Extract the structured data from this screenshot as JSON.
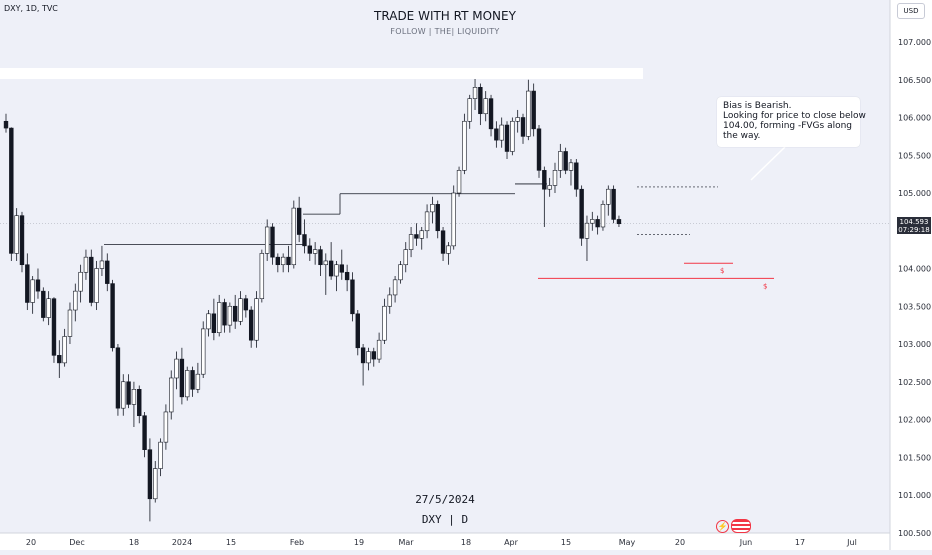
{
  "header": {
    "symbol_line": "DXY, 1D, TVC",
    "title": "TRADE WITH RT MONEY",
    "subtitle": "FOLLOW  |  THE|  LIQUIDITY",
    "currency": "USD"
  },
  "annotation": {
    "lines": [
      "Bias is Bearish.",
      "Looking for price to close below",
      "104.00, forming -FVGs along",
      "the way."
    ]
  },
  "watermark": {
    "date": "27/5/2024",
    "symbol": "DXY | D"
  },
  "price_badge": {
    "price": "104.593",
    "countdown": "07:29:18"
  },
  "liquidity_marks": [
    "$",
    "$"
  ],
  "colors": {
    "up": "#ffffff",
    "down": "#131722",
    "outline": "#131722",
    "liquidity": "#f23645",
    "level": "#131722",
    "background": "#eef0f8"
  },
  "chart_data": {
    "type": "candlestick",
    "y_ticks": [
      "107.000",
      "106.500",
      "106.000",
      "105.500",
      "105.000",
      "104.500",
      "104.000",
      "103.500",
      "103.000",
      "102.500",
      "102.000",
      "101.500",
      "101.000",
      "100.500"
    ],
    "x_ticks": [
      "20",
      "Dec",
      "18",
      "2024",
      "15",
      "Feb",
      "19",
      "Mar",
      "18",
      "Apr",
      "15",
      "May",
      "20",
      "Jun",
      "17",
      "Jul"
    ],
    "ylim": [
      100.4,
      107.3
    ],
    "last_price": 104.593,
    "ohlc": [
      [
        105.95,
        106.05,
        105.8,
        105.86
      ],
      [
        105.86,
        105.87,
        104.1,
        104.2
      ],
      [
        104.2,
        104.8,
        104.1,
        104.7
      ],
      [
        104.7,
        104.75,
        103.95,
        104.05
      ],
      [
        104.05,
        104.2,
        103.45,
        103.55
      ],
      [
        103.55,
        103.9,
        103.4,
        103.85
      ],
      [
        103.85,
        104.0,
        103.6,
        103.7
      ],
      [
        103.7,
        103.75,
        103.3,
        103.35
      ],
      [
        103.35,
        103.7,
        103.25,
        103.6
      ],
      [
        103.6,
        103.62,
        102.75,
        102.85
      ],
      [
        102.85,
        103.05,
        102.55,
        102.75
      ],
      [
        102.75,
        103.2,
        102.7,
        103.1
      ],
      [
        103.1,
        103.55,
        103.0,
        103.45
      ],
      [
        103.45,
        103.8,
        103.3,
        103.7
      ],
      [
        103.7,
        104.05,
        103.55,
        103.95
      ],
      [
        103.95,
        104.25,
        103.85,
        104.15
      ],
      [
        104.15,
        104.25,
        103.5,
        103.55
      ],
      [
        103.55,
        104.1,
        103.45,
        104.0
      ],
      [
        104.0,
        104.3,
        103.9,
        104.1
      ],
      [
        104.1,
        104.2,
        103.7,
        103.8
      ],
      [
        103.8,
        103.85,
        102.9,
        102.95
      ],
      [
        102.95,
        103.0,
        102.05,
        102.15
      ],
      [
        102.15,
        102.6,
        102.05,
        102.5
      ],
      [
        102.5,
        102.6,
        102.15,
        102.2
      ],
      [
        102.2,
        102.5,
        101.9,
        102.4
      ],
      [
        102.4,
        102.45,
        101.95,
        102.05
      ],
      [
        102.05,
        102.1,
        101.5,
        101.6
      ],
      [
        101.6,
        101.75,
        100.65,
        100.95
      ],
      [
        100.95,
        101.45,
        100.9,
        101.35
      ],
      [
        101.35,
        101.75,
        101.25,
        101.7
      ],
      [
        101.7,
        102.2,
        101.6,
        102.1
      ],
      [
        102.1,
        102.65,
        102.0,
        102.55
      ],
      [
        102.55,
        102.9,
        102.4,
        102.8
      ],
      [
        102.8,
        102.95,
        102.2,
        102.3
      ],
      [
        102.3,
        102.7,
        102.25,
        102.65
      ],
      [
        102.65,
        102.7,
        102.3,
        102.4
      ],
      [
        102.4,
        102.75,
        102.35,
        102.6
      ],
      [
        102.6,
        103.3,
        102.55,
        103.2
      ],
      [
        103.2,
        103.45,
        103.1,
        103.4
      ],
      [
        103.4,
        103.6,
        103.05,
        103.15
      ],
      [
        103.15,
        103.65,
        103.1,
        103.55
      ],
      [
        103.55,
        103.6,
        103.15,
        103.25
      ],
      [
        103.25,
        103.55,
        103.15,
        103.5
      ],
      [
        103.5,
        103.65,
        103.2,
        103.3
      ],
      [
        103.3,
        103.7,
        103.25,
        103.6
      ],
      [
        103.6,
        103.65,
        103.35,
        103.45
      ],
      [
        103.45,
        103.5,
        102.95,
        103.05
      ],
      [
        103.05,
        103.7,
        102.95,
        103.6
      ],
      [
        103.6,
        104.25,
        103.55,
        104.2
      ],
      [
        104.2,
        104.65,
        104.1,
        104.55
      ],
      [
        104.55,
        104.6,
        104.05,
        104.15
      ],
      [
        104.15,
        104.2,
        103.95,
        104.05
      ],
      [
        104.05,
        104.2,
        103.95,
        104.15
      ],
      [
        104.15,
        104.3,
        103.95,
        104.05
      ],
      [
        104.05,
        104.9,
        104.0,
        104.8
      ],
      [
        104.8,
        104.95,
        104.35,
        104.45
      ],
      [
        104.45,
        104.65,
        104.2,
        104.3
      ],
      [
        104.3,
        104.4,
        104.1,
        104.2
      ],
      [
        104.2,
        104.35,
        104.05,
        104.25
      ],
      [
        104.25,
        104.3,
        103.9,
        104.05
      ],
      [
        104.05,
        104.2,
        103.65,
        104.1
      ],
      [
        104.1,
        104.35,
        103.85,
        103.9
      ],
      [
        103.9,
        104.1,
        103.7,
        104.05
      ],
      [
        104.05,
        104.25,
        103.85,
        103.95
      ],
      [
        103.95,
        104.05,
        103.7,
        103.85
      ],
      [
        103.85,
        103.95,
        103.3,
        103.4
      ],
      [
        103.4,
        103.45,
        102.85,
        102.95
      ],
      [
        102.95,
        103.0,
        102.45,
        102.75
      ],
      [
        102.75,
        102.95,
        102.65,
        102.9
      ],
      [
        102.9,
        102.95,
        102.7,
        102.8
      ],
      [
        102.8,
        103.15,
        102.75,
        103.05
      ],
      [
        103.05,
        103.6,
        103.0,
        103.5
      ],
      [
        103.5,
        103.75,
        103.4,
        103.65
      ],
      [
        103.65,
        103.9,
        103.55,
        103.85
      ],
      [
        103.85,
        104.1,
        103.8,
        104.05
      ],
      [
        104.05,
        104.35,
        103.95,
        104.25
      ],
      [
        104.25,
        104.55,
        104.15,
        104.45
      ],
      [
        104.45,
        104.6,
        104.3,
        104.4
      ],
      [
        104.4,
        104.55,
        104.25,
        104.5
      ],
      [
        104.5,
        104.85,
        104.4,
        104.75
      ],
      [
        104.75,
        104.95,
        104.6,
        104.85
      ],
      [
        104.85,
        104.9,
        104.4,
        104.5
      ],
      [
        104.5,
        104.55,
        104.1,
        104.2
      ],
      [
        104.2,
        104.35,
        104.05,
        104.3
      ],
      [
        104.3,
        105.1,
        104.25,
        105.0
      ],
      [
        105.0,
        105.35,
        104.95,
        105.3
      ],
      [
        105.3,
        106.05,
        105.25,
        105.95
      ],
      [
        105.95,
        106.3,
        105.85,
        106.25
      ],
      [
        106.25,
        106.55,
        106.1,
        106.4
      ],
      [
        106.4,
        106.45,
        105.9,
        106.05
      ],
      [
        106.05,
        106.35,
        105.95,
        106.25
      ],
      [
        106.25,
        106.3,
        105.75,
        105.85
      ],
      [
        105.85,
        105.95,
        105.6,
        105.7
      ],
      [
        105.7,
        106.0,
        105.6,
        105.9
      ],
      [
        105.9,
        105.95,
        105.45,
        105.55
      ],
      [
        105.55,
        106.0,
        105.5,
        105.95
      ],
      [
        105.95,
        106.1,
        105.8,
        106.0
      ],
      [
        106.0,
        106.05,
        105.65,
        105.75
      ],
      [
        105.75,
        106.5,
        105.7,
        106.35
      ],
      [
        106.35,
        106.45,
        105.75,
        105.85
      ],
      [
        105.85,
        105.9,
        105.2,
        105.3
      ],
      [
        105.3,
        105.35,
        104.55,
        105.05
      ],
      [
        105.05,
        105.2,
        104.95,
        105.1
      ],
      [
        105.1,
        105.4,
        105.0,
        105.3
      ],
      [
        105.3,
        105.65,
        105.2,
        105.55
      ],
      [
        105.55,
        105.6,
        105.25,
        105.3
      ],
      [
        105.3,
        105.45,
        105.1,
        105.4
      ],
      [
        105.4,
        105.45,
        104.95,
        105.05
      ],
      [
        105.05,
        105.1,
        104.3,
        104.4
      ],
      [
        104.4,
        104.7,
        104.1,
        104.6
      ],
      [
        104.6,
        104.75,
        104.5,
        104.65
      ],
      [
        104.65,
        104.7,
        104.45,
        104.55
      ],
      [
        104.55,
        104.9,
        104.5,
        104.85
      ],
      [
        104.85,
        105.1,
        104.7,
        105.05
      ],
      [
        105.05,
        105.1,
        104.6,
        104.65
      ],
      [
        104.65,
        104.7,
        104.55,
        104.593
      ]
    ]
  }
}
